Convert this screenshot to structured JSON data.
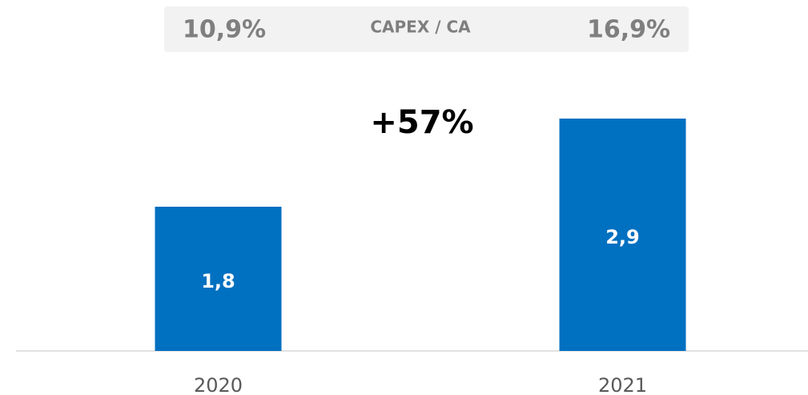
{
  "chart_data": {
    "type": "bar",
    "header": {
      "title": "CAPEX / CA",
      "ratios": [
        {
          "value": 10.9,
          "label": "10,9%"
        },
        {
          "value": 16.9,
          "label": "16,9%"
        }
      ]
    },
    "annotation": "+57%",
    "categories": [
      "2020",
      "2021"
    ],
    "values": [
      1.8,
      2.9
    ],
    "value_labels": [
      "1,8",
      "2,9"
    ],
    "color": "#0070c0",
    "ylim": [
      0,
      3
    ]
  }
}
